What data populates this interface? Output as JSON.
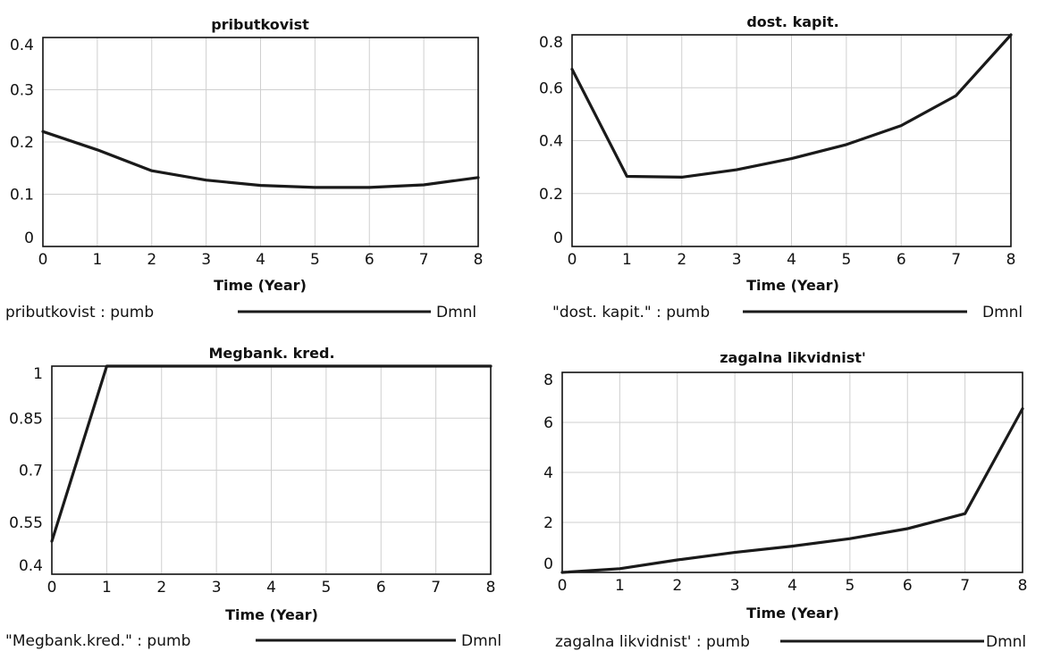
{
  "chart_data": [
    {
      "type": "line",
      "title": "pributkovist",
      "xlabel": "Time (Year)",
      "ylabel": "",
      "x": [
        0,
        1,
        2,
        3,
        4,
        5,
        6,
        7,
        8
      ],
      "xticks": [
        "0",
        "1",
        "2",
        "3",
        "4",
        "5",
        "6",
        "7",
        "8"
      ],
      "yticks": [
        "0",
        "0.1",
        "0.2",
        "0.3",
        "0.4"
      ],
      "ylim": [
        0,
        0.4
      ],
      "grid": true,
      "series": [
        {
          "name": "pributkovist : pumb",
          "unit": "Dmnl",
          "values": [
            0.22,
            0.185,
            0.145,
            0.127,
            0.117,
            0.113,
            0.113,
            0.118,
            0.132
          ]
        }
      ]
    },
    {
      "type": "line",
      "title": "dost. kapit.",
      "xlabel": "Time (Year)",
      "ylabel": "",
      "x": [
        0,
        1,
        2,
        3,
        4,
        5,
        6,
        7,
        8
      ],
      "xticks": [
        "0",
        "1",
        "2",
        "3",
        "4",
        "5",
        "6",
        "7",
        "8"
      ],
      "yticks": [
        "0",
        "0.2",
        "0.4",
        "0.6",
        "0.8"
      ],
      "ylim": [
        0,
        0.8
      ],
      "grid": true,
      "series": [
        {
          "name": "\"dost. kapit.\" : pumb",
          "unit": "Dmnl",
          "values": [
            0.67,
            0.265,
            0.262,
            0.29,
            0.332,
            0.385,
            0.457,
            0.57,
            0.8
          ]
        }
      ]
    },
    {
      "type": "line",
      "title": "Megbank. kred.",
      "xlabel": "Time (Year)",
      "ylabel": "",
      "x": [
        0,
        1,
        2,
        3,
        4,
        5,
        6,
        7,
        8
      ],
      "xticks": [
        "0",
        "1",
        "2",
        "3",
        "4",
        "5",
        "6",
        "7",
        "8"
      ],
      "yticks": [
        "0.4",
        "0.55",
        "0.7",
        "0.85",
        "1"
      ],
      "ylim": [
        0.4,
        1.0
      ],
      "grid": true,
      "series": [
        {
          "name": "\"Megbank.kred.\" : pumb",
          "unit": "Dmnl",
          "values": [
            0.495,
            1.0,
            1.0,
            1.0,
            1.0,
            1.0,
            1.0,
            1.0,
            1.0
          ]
        }
      ]
    },
    {
      "type": "line",
      "title": "zagalna likvidnist'",
      "xlabel": "Time (Year)",
      "ylabel": "",
      "x": [
        0,
        1,
        2,
        3,
        4,
        5,
        6,
        7,
        8
      ],
      "xticks": [
        "0",
        "1",
        "2",
        "3",
        "4",
        "5",
        "6",
        "7",
        "8"
      ],
      "yticks": [
        "0",
        "2",
        "4",
        "6",
        "8"
      ],
      "ylim": [
        0,
        8
      ],
      "grid": true,
      "series": [
        {
          "name": "zagalna likvidnist' : pumb",
          "unit": "Dmnl",
          "values": [
            0.0,
            0.15,
            0.5,
            0.8,
            1.05,
            1.35,
            1.75,
            2.35,
            6.55
          ]
        }
      ]
    }
  ]
}
